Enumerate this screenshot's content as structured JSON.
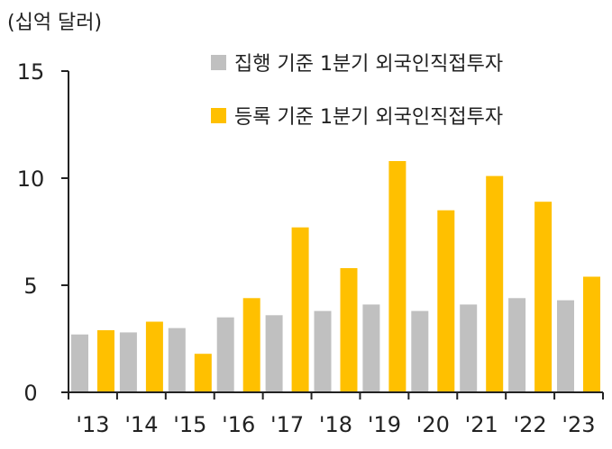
{
  "chart_data": {
    "type": "bar",
    "unit_label": "(십억 달러)",
    "categories": [
      "'13",
      "'14",
      "'15",
      "'16",
      "'17",
      "'18",
      "'19",
      "'20",
      "'21",
      "'22",
      "'23"
    ],
    "series": [
      {
        "name": "집행 기준 1분기 외국인직접투자",
        "color": "#c0c0c0",
        "values": [
          2.7,
          2.8,
          3.0,
          3.5,
          3.6,
          3.8,
          4.1,
          3.8,
          4.1,
          4.4,
          4.3
        ]
      },
      {
        "name": "등록 기준 1분기 외국인직접투자",
        "color": "#ffc000",
        "values": [
          2.9,
          3.3,
          1.8,
          4.4,
          7.7,
          5.8,
          10.8,
          8.5,
          10.1,
          8.9,
          5.4
        ]
      }
    ],
    "yticks": [
      "0",
      "5",
      "10",
      "15"
    ],
    "ylim": [
      0,
      15
    ],
    "legend_position": "top-right",
    "grid": false
  }
}
